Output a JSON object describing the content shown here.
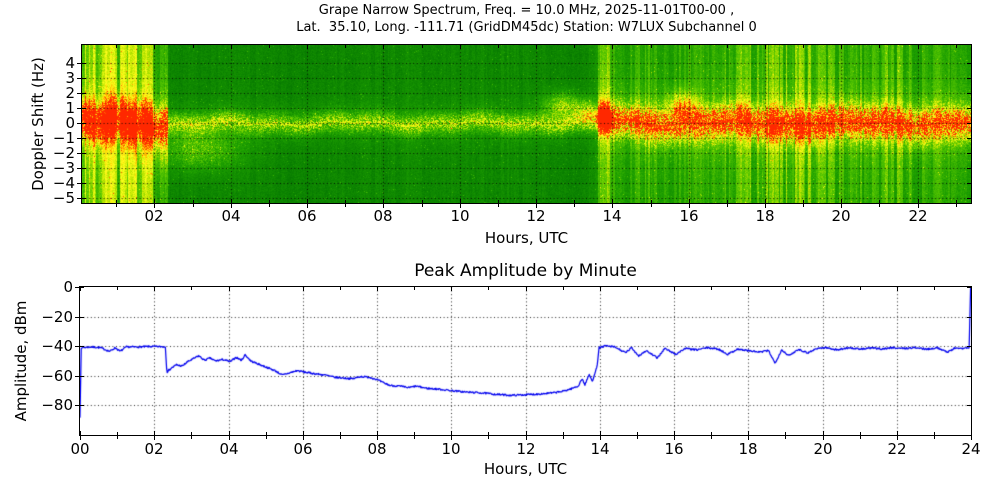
{
  "figure": {
    "title_line1": "Grape Narrow Spectrum, Freq. = 10.0 MHz, 2025-11-01T00-00 ,",
    "title_line2": "Lat.  35.10, Long. -111.71 (GridDM45dc) Station: W7LUX Subchannel 0"
  },
  "chart_data": [
    {
      "type": "heatmap",
      "title": "Grape Narrow Spectrum, Freq. = 10.0 MHz, 2025-11-01T00-00 , Lat. 35.10, Long. -111.71 (GridDM45dc) Station: W7LUX Subchannel 0",
      "xlabel": "Hours, UTC",
      "ylabel": "Doppler Shift (Hz)",
      "xlim": [
        0.1,
        23.4
      ],
      "ylim": [
        -5.3,
        5.2
      ],
      "xticks": [
        2,
        4,
        6,
        8,
        10,
        12,
        14,
        16,
        18,
        20,
        22
      ],
      "xtick_labels": [
        "02",
        "04",
        "06",
        "08",
        "10",
        "12",
        "14",
        "16",
        "18",
        "20",
        "22"
      ],
      "yticks": [
        4,
        3,
        2,
        1,
        0,
        -1,
        -2,
        -3,
        -4,
        -5
      ],
      "ytick_labels": [
        "4",
        "3",
        "2",
        "1",
        "0",
        "−1",
        "−2",
        "−3",
        "−4",
        "−5"
      ],
      "grid": true,
      "colormap": [
        "#005f00",
        "#087d00",
        "#1ea000",
        "#5ac800",
        "#bee600",
        "#ffff1e",
        "#ffc800",
        "#ff7800",
        "#ff2800"
      ],
      "colormap_positions": [
        0.0,
        0.2,
        0.4,
        0.58,
        0.7,
        0.8,
        0.88,
        0.94,
        1.0
      ],
      "segments": [
        {
          "t_start": 0.1,
          "t_end": 2.35,
          "base": 0.3,
          "stripe": 0.34,
          "band_amp": 0.55,
          "band_sigma_hz": 0.8,
          "carrier": "red",
          "description": "bright noisy band, strong vertical striping, solid red carrier near 0 Hz"
        },
        {
          "t_start": 2.35,
          "t_end": 13.62,
          "base": 0.21,
          "stripe": 0.07,
          "band_amp": 0.3,
          "band_sigma_hz": 0.5,
          "carrier": "faint",
          "description": "dark quiet green, faint fuzzy yellow doppler trace, intermittent carrier"
        },
        {
          "t_start": 13.62,
          "t_end": 23.4,
          "base": 0.28,
          "stripe": 0.27,
          "band_amp": 0.5,
          "band_sigma_hz": 0.75,
          "carrier": "red",
          "description": "bright noisy band after signal return, vertical striping, solid red carrier at 0 Hz"
        }
      ],
      "features": [
        {
          "t": 3.2,
          "hz": -1.8,
          "t_sigma": 1.1,
          "hz_sigma": 1.4,
          "amp": 0.28,
          "description": "downward doppler spread after fade"
        },
        {
          "t": 12.7,
          "hz": 1.2,
          "t_sigma": 0.5,
          "hz_sigma": 0.9,
          "amp": 0.36,
          "description": "upward doppler cloud before signal return"
        },
        {
          "t": 13.35,
          "hz": 0.8,
          "t_sigma": 0.3,
          "hz_sigma": 0.8,
          "amp": 0.28,
          "description": "rising cloud"
        },
        {
          "t": 13.8,
          "hz": 0.3,
          "t_sigma": 0.16,
          "hz_sigma": 0.6,
          "amp": 0.85,
          "description": "bright orange burst at signal return"
        },
        {
          "t": 15.8,
          "hz": 1.3,
          "t_sigma": 0.4,
          "hz_sigma": 0.9,
          "amp": 0.28,
          "description": "upward fuzz"
        }
      ]
    },
    {
      "type": "line",
      "title": "Peak Amplitude by Minute",
      "xlabel": "Hours, UTC",
      "ylabel": "Amplitude, dBm",
      "xlim": [
        0,
        24
      ],
      "ylim": [
        -100,
        0
      ],
      "xticks": [
        0,
        2,
        4,
        6,
        8,
        10,
        12,
        14,
        16,
        18,
        20,
        22,
        24
      ],
      "xtick_labels": [
        "00",
        "02",
        "04",
        "06",
        "08",
        "10",
        "12",
        "14",
        "16",
        "18",
        "20",
        "22",
        "24"
      ],
      "yticks": [
        0,
        -20,
        -40,
        -60,
        -80
      ],
      "ytick_labels": [
        "0",
        "−20",
        "−40",
        "−60",
        "−80"
      ],
      "grid": true,
      "line_color": "#0000ee",
      "points": [
        [
          0.0,
          -88
        ],
        [
          0.03,
          -41
        ],
        [
          0.3,
          -40.5
        ],
        [
          0.55,
          -41
        ],
        [
          0.8,
          -43.5
        ],
        [
          0.95,
          -41
        ],
        [
          1.08,
          -43.5
        ],
        [
          1.25,
          -40.5
        ],
        [
          1.6,
          -40.5
        ],
        [
          1.9,
          -40.2
        ],
        [
          2.2,
          -40.3
        ],
        [
          2.3,
          -40.5
        ],
        [
          2.34,
          -57.5
        ],
        [
          2.45,
          -55
        ],
        [
          2.6,
          -52.5
        ],
        [
          2.75,
          -53.5
        ],
        [
          2.9,
          -50.5
        ],
        [
          3.05,
          -48.5
        ],
        [
          3.2,
          -46.5
        ],
        [
          3.35,
          -49.5
        ],
        [
          3.5,
          -48
        ],
        [
          3.65,
          -50
        ],
        [
          3.85,
          -49
        ],
        [
          4.05,
          -50.5
        ],
        [
          4.2,
          -47.5
        ],
        [
          4.35,
          -49.5
        ],
        [
          4.45,
          -45.8
        ],
        [
          4.6,
          -50
        ],
        [
          4.8,
          -52
        ],
        [
          5.0,
          -54
        ],
        [
          5.25,
          -56.5
        ],
        [
          5.45,
          -59.5
        ],
        [
          5.65,
          -58
        ],
        [
          5.85,
          -56.5
        ],
        [
          6.05,
          -57.5
        ],
        [
          6.3,
          -58.5
        ],
        [
          6.6,
          -59.5
        ],
        [
          6.85,
          -61
        ],
        [
          7.1,
          -61.5
        ],
        [
          7.35,
          -62
        ],
        [
          7.55,
          -60.5
        ],
        [
          7.8,
          -61
        ],
        [
          8.0,
          -62.5
        ],
        [
          8.15,
          -64.5
        ],
        [
          8.35,
          -66.5
        ],
        [
          8.6,
          -67
        ],
        [
          8.85,
          -68
        ],
        [
          9.05,
          -67
        ],
        [
          9.35,
          -68.5
        ],
        [
          9.65,
          -69
        ],
        [
          10.0,
          -70
        ],
        [
          10.4,
          -71
        ],
        [
          10.8,
          -71.5
        ],
        [
          11.2,
          -72.5
        ],
        [
          11.6,
          -73.2
        ],
        [
          12.0,
          -72.8
        ],
        [
          12.4,
          -72.2
        ],
        [
          12.75,
          -71.5
        ],
        [
          13.0,
          -70.5
        ],
        [
          13.2,
          -69
        ],
        [
          13.42,
          -67
        ],
        [
          13.52,
          -62
        ],
        [
          13.6,
          -66
        ],
        [
          13.72,
          -59
        ],
        [
          13.8,
          -64
        ],
        [
          13.88,
          -57
        ],
        [
          13.94,
          -52
        ],
        [
          13.98,
          -41
        ],
        [
          14.15,
          -39.8
        ],
        [
          14.4,
          -40.5
        ],
        [
          14.7,
          -44.5
        ],
        [
          14.85,
          -41
        ],
        [
          15.05,
          -46.5
        ],
        [
          15.25,
          -43
        ],
        [
          15.55,
          -48
        ],
        [
          15.75,
          -41.5
        ],
        [
          16.05,
          -45.5
        ],
        [
          16.3,
          -41.5
        ],
        [
          16.6,
          -42.5
        ],
        [
          16.9,
          -41
        ],
        [
          17.2,
          -42
        ],
        [
          17.45,
          -45.5
        ],
        [
          17.7,
          -42
        ],
        [
          18.0,
          -43
        ],
        [
          18.3,
          -44
        ],
        [
          18.55,
          -43
        ],
        [
          18.72,
          -51.5
        ],
        [
          18.9,
          -42.5
        ],
        [
          19.1,
          -46.5
        ],
        [
          19.35,
          -42
        ],
        [
          19.6,
          -44.5
        ],
        [
          19.85,
          -41.5
        ],
        [
          20.1,
          -41
        ],
        [
          20.4,
          -42.5
        ],
        [
          20.7,
          -41
        ],
        [
          21.0,
          -42
        ],
        [
          21.3,
          -41.2
        ],
        [
          21.6,
          -41.8
        ],
        [
          21.9,
          -41
        ],
        [
          22.2,
          -41.5
        ],
        [
          22.5,
          -41
        ],
        [
          22.8,
          -42
        ],
        [
          23.1,
          -41
        ],
        [
          23.35,
          -44
        ],
        [
          23.55,
          -41.5
        ],
        [
          23.8,
          -41.3
        ],
        [
          23.95,
          -41
        ],
        [
          23.99,
          -0.5
        ]
      ]
    }
  ]
}
